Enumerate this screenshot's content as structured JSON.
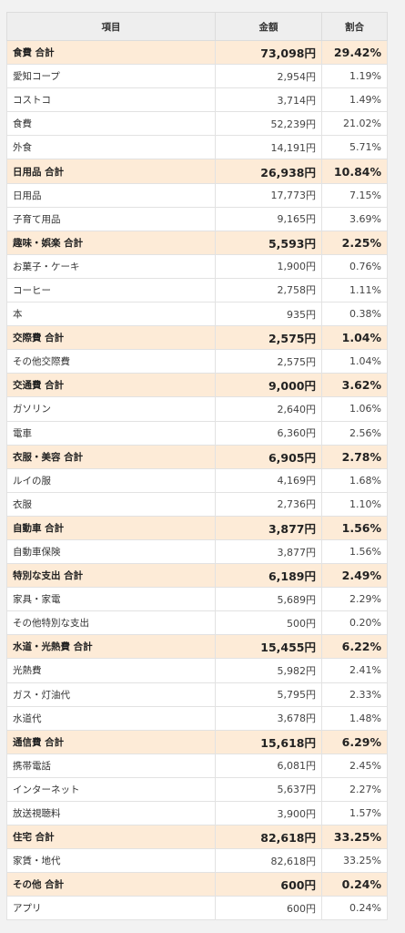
{
  "header": {
    "col_name": "項目",
    "col_amount": "金額",
    "col_ratio": "割合"
  },
  "rows": [
    {
      "type": "cat",
      "name": "食費 合計",
      "amount": "73,098円",
      "ratio": "29.42%"
    },
    {
      "type": "item",
      "name": "愛知コープ",
      "amount": "2,954円",
      "ratio": "1.19%"
    },
    {
      "type": "item",
      "name": "コストコ",
      "amount": "3,714円",
      "ratio": "1.49%"
    },
    {
      "type": "item",
      "name": "食費",
      "amount": "52,239円",
      "ratio": "21.02%"
    },
    {
      "type": "item",
      "name": "外食",
      "amount": "14,191円",
      "ratio": "5.71%"
    },
    {
      "type": "cat",
      "name": "日用品 合計",
      "amount": "26,938円",
      "ratio": "10.84%"
    },
    {
      "type": "item",
      "name": "日用品",
      "amount": "17,773円",
      "ratio": "7.15%"
    },
    {
      "type": "item",
      "name": "子育て用品",
      "amount": "9,165円",
      "ratio": "3.69%"
    },
    {
      "type": "cat",
      "name": "趣味・娯楽 合計",
      "amount": "5,593円",
      "ratio": "2.25%"
    },
    {
      "type": "item",
      "name": "お菓子・ケーキ",
      "amount": "1,900円",
      "ratio": "0.76%"
    },
    {
      "type": "item",
      "name": "コーヒー",
      "amount": "2,758円",
      "ratio": "1.11%"
    },
    {
      "type": "item",
      "name": "本",
      "amount": "935円",
      "ratio": "0.38%"
    },
    {
      "type": "cat",
      "name": "交際費 合計",
      "amount": "2,575円",
      "ratio": "1.04%"
    },
    {
      "type": "item",
      "name": "その他交際費",
      "amount": "2,575円",
      "ratio": "1.04%"
    },
    {
      "type": "cat",
      "name": "交通費 合計",
      "amount": "9,000円",
      "ratio": "3.62%"
    },
    {
      "type": "item",
      "name": "ガソリン",
      "amount": "2,640円",
      "ratio": "1.06%"
    },
    {
      "type": "item",
      "name": "電車",
      "amount": "6,360円",
      "ratio": "2.56%"
    },
    {
      "type": "cat",
      "name": "衣服・美容 合計",
      "amount": "6,905円",
      "ratio": "2.78%"
    },
    {
      "type": "item",
      "name": "ルイの服",
      "amount": "4,169円",
      "ratio": "1.68%"
    },
    {
      "type": "item",
      "name": "衣服",
      "amount": "2,736円",
      "ratio": "1.10%"
    },
    {
      "type": "cat",
      "name": "自動車 合計",
      "amount": "3,877円",
      "ratio": "1.56%"
    },
    {
      "type": "item",
      "name": "自動車保険",
      "amount": "3,877円",
      "ratio": "1.56%"
    },
    {
      "type": "cat",
      "name": "特別な支出 合計",
      "amount": "6,189円",
      "ratio": "2.49%"
    },
    {
      "type": "item",
      "name": "家具・家電",
      "amount": "5,689円",
      "ratio": "2.29%"
    },
    {
      "type": "item",
      "name": "その他特別な支出",
      "amount": "500円",
      "ratio": "0.20%"
    },
    {
      "type": "cat",
      "name": "水道・光熱費 合計",
      "amount": "15,455円",
      "ratio": "6.22%"
    },
    {
      "type": "item",
      "name": "光熱費",
      "amount": "5,982円",
      "ratio": "2.41%"
    },
    {
      "type": "item",
      "name": "ガス・灯油代",
      "amount": "5,795円",
      "ratio": "2.33%"
    },
    {
      "type": "item",
      "name": "水道代",
      "amount": "3,678円",
      "ratio": "1.48%"
    },
    {
      "type": "cat",
      "name": "通信費 合計",
      "amount": "15,618円",
      "ratio": "6.29%"
    },
    {
      "type": "item",
      "name": "携帯電話",
      "amount": "6,081円",
      "ratio": "2.45%"
    },
    {
      "type": "item",
      "name": "インターネット",
      "amount": "5,637円",
      "ratio": "2.27%"
    },
    {
      "type": "item",
      "name": "放送視聴料",
      "amount": "3,900円",
      "ratio": "1.57%"
    },
    {
      "type": "cat",
      "name": "住宅 合計",
      "amount": "82,618円",
      "ratio": "33.25%"
    },
    {
      "type": "item",
      "name": "家賃・地代",
      "amount": "82,618円",
      "ratio": "33.25%"
    },
    {
      "type": "cat",
      "name": "その他 合計",
      "amount": "600円",
      "ratio": "0.24%"
    },
    {
      "type": "item",
      "name": "アプリ",
      "amount": "600円",
      "ratio": "0.24%"
    }
  ]
}
